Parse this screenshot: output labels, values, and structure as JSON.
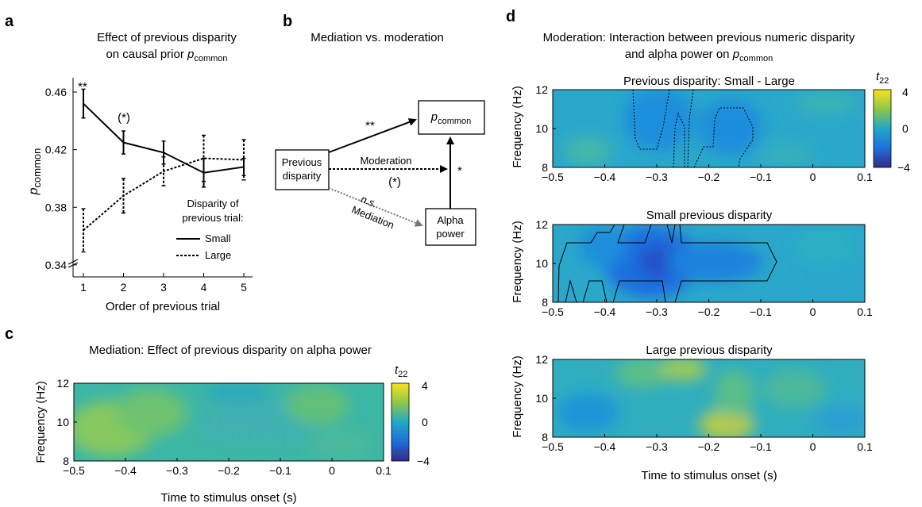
{
  "panel_letters": {
    "a": "a",
    "b": "b",
    "c": "c",
    "d": "d"
  },
  "panel_a": {
    "title_line1": "Effect of previous disparity",
    "title_line2": "on causal prior",
    "title_var": "p",
    "title_sub": "common",
    "ylabel_var": "p",
    "ylabel_sub": "common",
    "xlabel": "Order of previous trial",
    "legend_title_1": "Disparity of",
    "legend_title_2": "previous trial:",
    "legend_small": "Small",
    "legend_large": "Large",
    "sig_1": "**",
    "sig_2": "(*)"
  },
  "panel_b": {
    "title": "Mediation vs. moderation",
    "box_prev_1": "Previous",
    "box_prev_2": "disparity",
    "box_p_var": "p",
    "box_p_sub": "common",
    "box_alpha_1": "Alpha",
    "box_alpha_2": "power",
    "lbl_moderation": "Moderation",
    "lbl_mediation": "Mediation",
    "lbl_ns": "n.s.",
    "sig_top": "**",
    "sig_mod": "(*)",
    "sig_alpha": "*"
  },
  "panel_c": {
    "title": "Mediation: Effect of previous disparity on alpha power",
    "xlabel": "Time to stimulus onset (s)",
    "ylabel": "Frequency (Hz)"
  },
  "panel_d": {
    "title_line1": "Moderation: Interaction between previous numeric disparity",
    "title_line2": "and alpha power on",
    "title_var": "p",
    "title_sub": "common",
    "sub1": "Previous disparity: Small - Large",
    "sub2": "Small previous disparity",
    "sub3": "Large previous disparity",
    "xlabel": "Time to stimulus onset (s)",
    "ylabel": "Frequency (Hz)"
  },
  "colorbar": {
    "label_var": "t",
    "label_sub": "22",
    "ticks": [
      "4",
      "0",
      "−4"
    ]
  },
  "colors": {
    "colorbar_top": "#f9e11f",
    "colorbar_mid": "#21a8c8",
    "colorbar_bottom": "#352a87",
    "field": "#27a9c4"
  },
  "chart_data": [
    {
      "type": "line",
      "x": [
        1,
        2,
        3,
        4,
        5
      ],
      "xlabel": "Order of previous trial",
      "ylabel": "p_common",
      "ylim": [
        0.33,
        0.47
      ],
      "yticks": [
        "0.34",
        "0.38",
        "0.42",
        "0.46"
      ],
      "xticks": [
        "1",
        "2",
        "3",
        "4",
        "5"
      ],
      "series": [
        {
          "name": "Small",
          "style": "solid",
          "values": [
            0.452,
            0.425,
            0.418,
            0.404,
            0.408
          ],
          "err": [
            0.01,
            0.008,
            0.008,
            0.01,
            0.006
          ]
        },
        {
          "name": "Large",
          "style": "dashed",
          "values": [
            0.364,
            0.388,
            0.405,
            0.414,
            0.413
          ],
          "err": [
            0.015,
            0.012,
            0.01,
            0.016,
            0.014
          ]
        }
      ]
    },
    {
      "type": "heatmap",
      "title": "Mediation: Effect of previous disparity on alpha power",
      "xlim": [
        -0.5,
        0.1
      ],
      "ylim": [
        8,
        12
      ],
      "xticks": [
        "−0.5",
        "−0.4",
        "−0.3",
        "−0.2",
        "−0.1",
        "0",
        "0.1"
      ],
      "yticks": [
        "8",
        "10",
        "12"
      ],
      "clim": [
        -4,
        4
      ]
    },
    {
      "type": "heatmap",
      "title": "Previous disparity: Small - Large",
      "xlim": [
        -0.5,
        0.1
      ],
      "ylim": [
        8,
        12
      ],
      "xticks": [
        "−0.5",
        "−0.4",
        "−0.3",
        "−0.2",
        "−0.1",
        "0",
        "0.1"
      ],
      "yticks": [
        "8",
        "10",
        "12"
      ],
      "clim": [
        -4,
        4
      ]
    },
    {
      "type": "heatmap",
      "title": "Small previous disparity",
      "xlim": [
        -0.5,
        0.1
      ],
      "ylim": [
        8,
        12
      ],
      "xticks": [
        "−0.5",
        "−0.4",
        "−0.3",
        "−0.2",
        "−0.1",
        "0",
        "0.1"
      ],
      "yticks": [
        "8",
        "10",
        "12"
      ],
      "clim": [
        -4,
        4
      ]
    },
    {
      "type": "heatmap",
      "title": "Large previous disparity",
      "xlim": [
        -0.5,
        0.1
      ],
      "ylim": [
        8,
        12
      ],
      "xticks": [
        "−0.5",
        "−0.4",
        "−0.3",
        "−0.2",
        "−0.1",
        "0",
        "0.1"
      ],
      "yticks": [
        "8",
        "10",
        "12"
      ],
      "clim": [
        -4,
        4
      ]
    }
  ]
}
